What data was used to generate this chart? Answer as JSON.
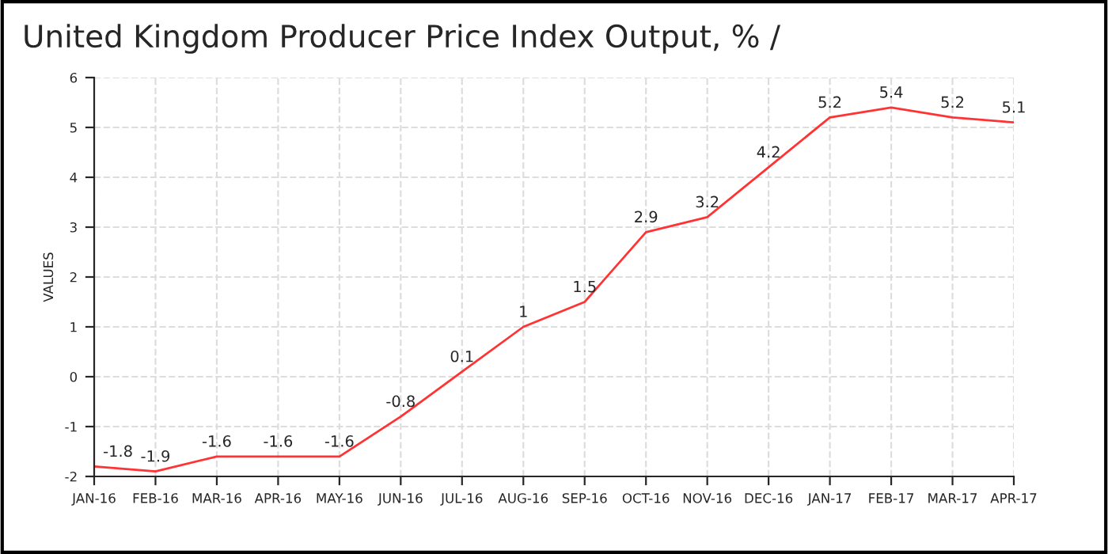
{
  "chart_data": {
    "type": "line",
    "title": "United Kingdom Producer Price Index Output, % /",
    "ylabel": "VALUES",
    "categories": [
      "JAN-16",
      "FEB-16",
      "MAR-16",
      "APR-16",
      "MAY-16",
      "JUN-16",
      "JUL-16",
      "AUG-16",
      "SEP-16",
      "OCT-16",
      "NOV-16",
      "DEC-16",
      "JAN-17",
      "FEB-17",
      "MAR-17",
      "APR-17"
    ],
    "series": [
      {
        "color": "#ff3333",
        "values": [
          -1.8,
          -1.9,
          -1.6,
          -1.6,
          -1.6,
          -0.8,
          0.1,
          1,
          1.5,
          2.9,
          3.2,
          4.2,
          5.2,
          5.4,
          5.2,
          5.1
        ]
      }
    ],
    "ylim": [
      -2,
      6
    ],
    "yticks": [
      -2,
      -1,
      0,
      1,
      2,
      3,
      4,
      5,
      6
    ],
    "grid": true,
    "data_labels": true,
    "marker": "none",
    "line_style": "solid"
  }
}
